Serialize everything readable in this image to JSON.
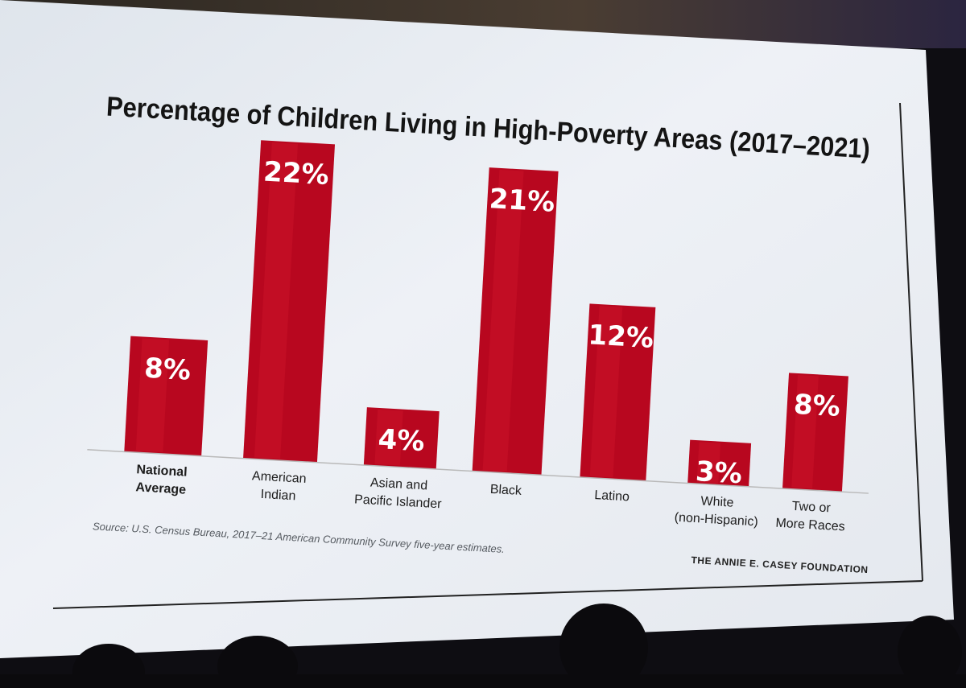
{
  "chart_data": {
    "type": "bar",
    "title": "Percentage of Children Living in High-Poverty Areas (2017–2021)",
    "categories": [
      [
        "National",
        "Average"
      ],
      [
        "American",
        "Indian"
      ],
      [
        "Asian and",
        "Pacific Islander"
      ],
      [
        "Black"
      ],
      [
        "Latino"
      ],
      [
        "White",
        "(non-Hispanic)"
      ],
      [
        "Two or",
        "More Races"
      ]
    ],
    "values": [
      8,
      22,
      4,
      21,
      12,
      3,
      8
    ],
    "value_labels": [
      "8%",
      "22%",
      "4%",
      "21%",
      "12%",
      "3%",
      "8%"
    ],
    "ylim": [
      0,
      22
    ],
    "xlabel": "",
    "ylabel": "",
    "source": "Source: U.S. Census Bureau, 2017–21 American Community Survey five-year estimates.",
    "organization": "THE ANNIE E. CASEY FOUNDATION",
    "colors": {
      "bar": "#b8071f",
      "bar_highlight": "#d51a2e",
      "baseline": "#b9b9b9",
      "screen": "#e8edf3"
    }
  }
}
